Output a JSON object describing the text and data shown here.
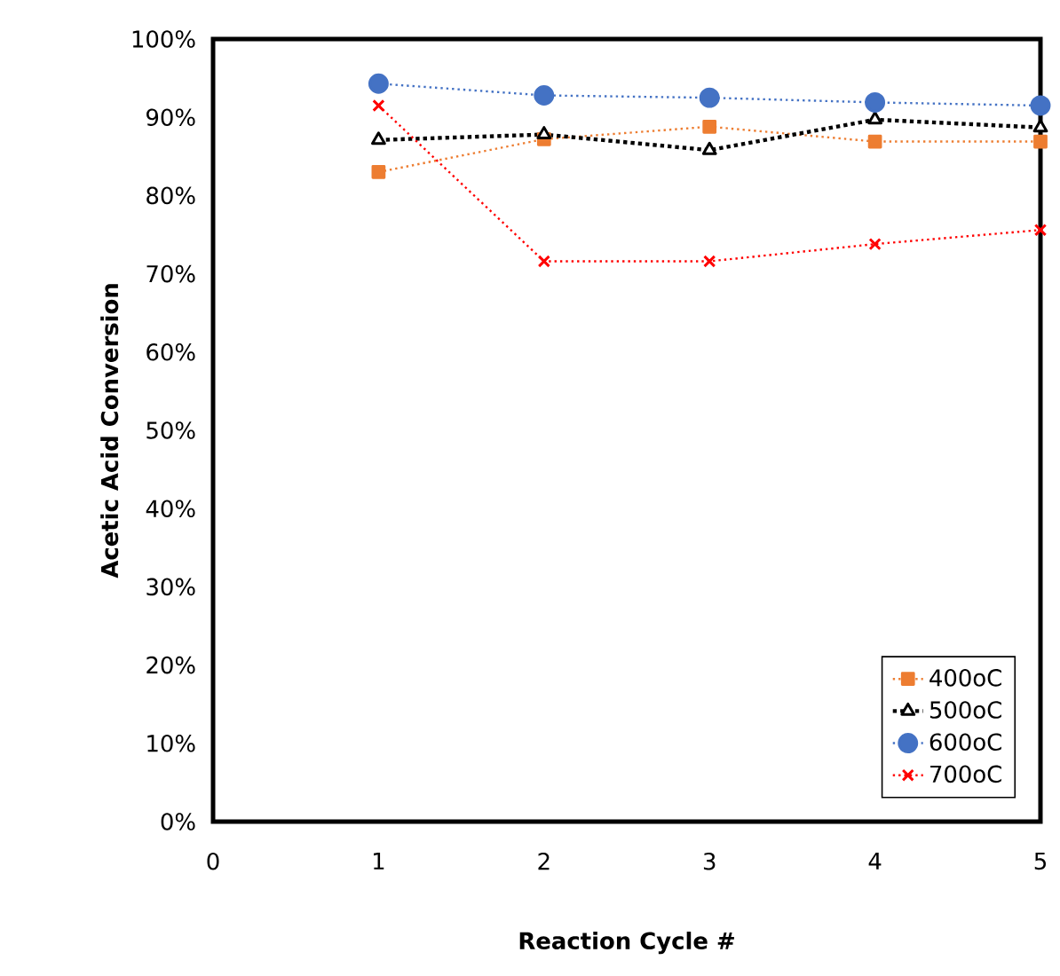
{
  "chart_data": {
    "type": "line",
    "xlabel": "Reaction Cycle #",
    "ylabel": "Acetic Acid Conversion",
    "x": [
      1,
      2,
      3,
      4,
      5
    ],
    "series": [
      {
        "name": "400oC",
        "color": "#ed7d31",
        "marker": "square",
        "line_style": "dotted",
        "values": [
          83,
          87.2,
          88.8,
          86.9,
          86.9
        ]
      },
      {
        "name": "500oC",
        "color": "#000000",
        "marker": "triangle",
        "line_style": "dotted",
        "values": [
          87.1,
          87.8,
          85.8,
          89.7,
          88.7
        ]
      },
      {
        "name": "600oC",
        "color": "#4472c4",
        "marker": "circle",
        "line_style": "dotted",
        "values": [
          94.3,
          92.8,
          92.5,
          91.9,
          91.5
        ]
      },
      {
        "name": "700oC",
        "color": "#ff0000",
        "marker": "cross",
        "line_style": "dotted",
        "values": [
          91.5,
          71.6,
          71.6,
          73.8,
          75.6
        ]
      }
    ],
    "xlim": [
      0,
      5
    ],
    "xticks": [
      0,
      1,
      2,
      3,
      4,
      5
    ],
    "ylim": [
      0,
      100
    ],
    "yticks": [
      {
        "value": 0,
        "label": "0%"
      },
      {
        "value": 10,
        "label": "10%"
      },
      {
        "value": 20,
        "label": "20%"
      },
      {
        "value": 30,
        "label": "30%"
      },
      {
        "value": 40,
        "label": "40%"
      },
      {
        "value": 50,
        "label": "50%"
      },
      {
        "value": 60,
        "label": "60%"
      },
      {
        "value": 70,
        "label": "70%"
      },
      {
        "value": 80,
        "label": "80%"
      },
      {
        "value": 90,
        "label": "90%"
      },
      {
        "value": 100,
        "label": "100%"
      }
    ],
    "grid": false,
    "legend": "bottom right"
  }
}
